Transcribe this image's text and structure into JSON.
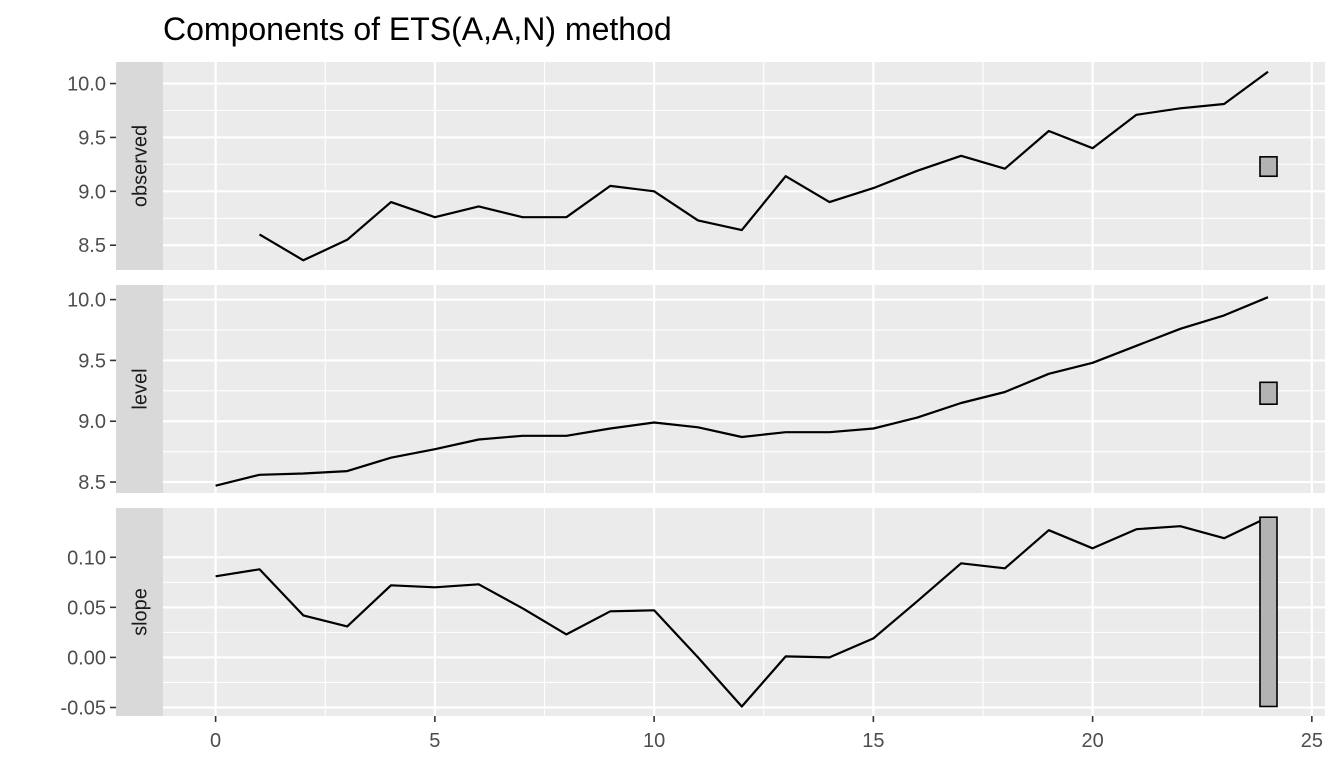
{
  "chart_data": {
    "type": "line",
    "title": "Components of ETS(A,A,N) method",
    "xlabel": "",
    "ylabel": "",
    "xlim": [
      -1.2,
      25.3
    ],
    "x_ticks": [
      0,
      5,
      10,
      15,
      20,
      25
    ],
    "x_tick_labels": [
      "0",
      "5",
      "10",
      "15",
      "20",
      "25"
    ],
    "grid": true,
    "panels": [
      {
        "name": "observed",
        "ylim": [
          8.27,
          10.2
        ],
        "y_ticks": [
          8.5,
          9.0,
          9.5,
          10.0
        ],
        "y_tick_labels": [
          "8.5",
          "9.0",
          "9.5",
          "10.0"
        ],
        "x": [
          1,
          2,
          3,
          4,
          5,
          6,
          7,
          8,
          9,
          10,
          11,
          12,
          13,
          14,
          15,
          16,
          17,
          18,
          19,
          20,
          21,
          22,
          23,
          24
        ],
        "values": [
          8.6,
          8.36,
          8.55,
          8.9,
          8.76,
          8.86,
          8.76,
          8.76,
          9.05,
          9.0,
          8.73,
          8.64,
          9.14,
          8.9,
          9.03,
          9.19,
          9.33,
          9.21,
          9.56,
          9.4,
          9.71,
          9.77,
          9.81,
          10.11
        ],
        "scale_bar": [
          9.14,
          9.32
        ]
      },
      {
        "name": "level",
        "ylim": [
          8.41,
          10.12
        ],
        "y_ticks": [
          8.5,
          9.0,
          9.5,
          10.0
        ],
        "y_tick_labels": [
          "8.5",
          "9.0",
          "9.5",
          "10.0"
        ],
        "x": [
          0,
          1,
          2,
          3,
          4,
          5,
          6,
          7,
          8,
          9,
          10,
          11,
          12,
          13,
          14,
          15,
          16,
          17,
          18,
          19,
          20,
          21,
          22,
          23,
          24
        ],
        "values": [
          8.47,
          8.56,
          8.57,
          8.59,
          8.7,
          8.77,
          8.85,
          8.88,
          8.88,
          8.94,
          8.99,
          8.95,
          8.87,
          8.91,
          8.91,
          8.94,
          9.03,
          9.15,
          9.24,
          9.39,
          9.48,
          9.62,
          9.76,
          9.87,
          10.02
        ],
        "scale_bar": [
          9.14,
          9.32
        ]
      },
      {
        "name": "slope",
        "ylim": [
          -0.0585,
          0.1492
        ],
        "y_ticks": [
          -0.05,
          0.0,
          0.05,
          0.1
        ],
        "y_tick_labels": [
          "-0.05",
          "0.00",
          "0.05",
          "0.10"
        ],
        "x": [
          0,
          1,
          2,
          3,
          4,
          5,
          6,
          7,
          8,
          9,
          10,
          11,
          12,
          13,
          14,
          15,
          16,
          17,
          18,
          19,
          20,
          21,
          22,
          23,
          24
        ],
        "values": [
          0.081,
          0.088,
          0.042,
          0.031,
          0.072,
          0.07,
          0.073,
          0.049,
          0.023,
          0.046,
          0.047,
          0.0,
          -0.049,
          0.001,
          0.0,
          0.019,
          0.056,
          0.094,
          0.089,
          0.127,
          0.109,
          0.128,
          0.131,
          0.119,
          0.14
        ],
        "scale_bar": [
          -0.049,
          0.14
        ]
      }
    ]
  }
}
